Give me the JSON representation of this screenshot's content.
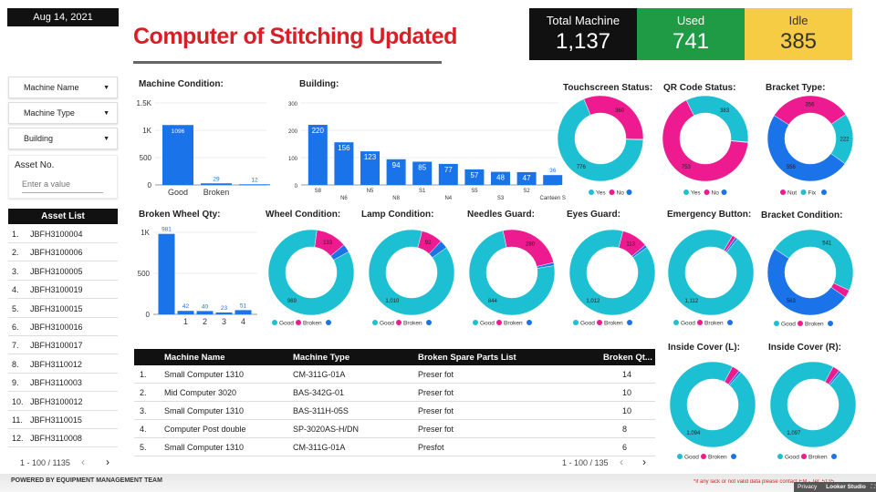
{
  "header": {
    "date": "Aug 14, 2021",
    "title": "Computer of Stitching Updated"
  },
  "kpis": {
    "total_label": "Total Machine",
    "total_value": "1,137",
    "used_label": "Used",
    "used_value": "741",
    "idle_label": "Idle",
    "idle_value": "385"
  },
  "filters": {
    "machine_name": "Machine Name",
    "machine_type": "Machine Type",
    "building": "Building",
    "asset_no_label": "Asset No.",
    "asset_no_placeholder": "Enter a value"
  },
  "asset_list": {
    "header": "Asset List",
    "rows": [
      {
        "n": "1.",
        "id": "JBFH3100004"
      },
      {
        "n": "2.",
        "id": "JBFH3100006"
      },
      {
        "n": "3.",
        "id": "JBFH3100005"
      },
      {
        "n": "4.",
        "id": "JBFH3100019"
      },
      {
        "n": "5.",
        "id": "JBFH3100015"
      },
      {
        "n": "6.",
        "id": "JBFH3100016"
      },
      {
        "n": "7.",
        "id": "JBFH3100017"
      },
      {
        "n": "8.",
        "id": "JBFH3110012"
      },
      {
        "n": "9.",
        "id": "JBFH3110003"
      },
      {
        "n": "10.",
        "id": "JBFH3100012"
      },
      {
        "n": "11.",
        "id": "JBFH3110015"
      },
      {
        "n": "12.",
        "id": "JBFH3110008"
      }
    ],
    "pager": "1 - 100 / 1135"
  },
  "colors": {
    "blue": "#1a73e8",
    "teal": "#1cc0d2",
    "pink": "#ee1a8f",
    "red": "#d81f26",
    "green": "#1e9b44",
    "yellow": "#f5cc43"
  },
  "chart_data": [
    {
      "id": "machine_condition",
      "type": "bar",
      "title": "Machine Condition:",
      "categories": [
        "Good",
        "Broken",
        ""
      ],
      "values": [
        1096,
        29,
        12
      ],
      "yticks": [
        "0",
        "500",
        "1K",
        "1.5K"
      ],
      "ylim": [
        0,
        1500
      ]
    },
    {
      "id": "building",
      "type": "bar",
      "title": "Building:",
      "categories": [
        "S8",
        "N6",
        "N5",
        "N8",
        "S1",
        "N4",
        "S5",
        "S3",
        "S2",
        "Canteen S"
      ],
      "values": [
        220,
        156,
        123,
        94,
        85,
        77,
        57,
        48,
        47,
        36
      ],
      "yticks": [
        "0",
        "100",
        "200",
        "300"
      ],
      "ylim": [
        0,
        300
      ]
    },
    {
      "id": "broken_wheel_qty",
      "type": "bar",
      "title": "Broken Wheel Qty:",
      "categories": [
        "",
        "1",
        "2",
        "3",
        "4"
      ],
      "values": [
        981,
        42,
        40,
        23,
        51
      ],
      "yticks": [
        "0",
        "500",
        "1K"
      ],
      "ylim": [
        0,
        1000
      ]
    },
    {
      "id": "touchscreen_status",
      "type": "pie",
      "title": "Touchscreen Status:",
      "slices": [
        {
          "name": "Yes",
          "value": 776,
          "color": "#1cc0d2"
        },
        {
          "name": "No",
          "value": 360,
          "color": "#ee1a8f"
        },
        {
          "name": "",
          "value": 1,
          "color": "#1a73e8"
        }
      ],
      "labels": [
        "776",
        "360"
      ]
    },
    {
      "id": "qr_code_status",
      "type": "pie",
      "title": "QR Code Status:",
      "slices": [
        {
          "name": "No",
          "value": 753,
          "color": "#ee1a8f"
        },
        {
          "name": "Yes",
          "value": 383,
          "color": "#1cc0d2"
        },
        {
          "name": "",
          "value": 1,
          "color": "#1a73e8"
        }
      ],
      "labels": [
        "753",
        "383"
      ]
    },
    {
      "id": "bracket_type",
      "type": "pie",
      "title": "Bracket Type:",
      "slices": [
        {
          "name": "",
          "value": 556,
          "color": "#1a73e8"
        },
        {
          "name": "Nut",
          "value": 356,
          "color": "#ee1a8f"
        },
        {
          "name": "Fix",
          "value": 222,
          "color": "#1cc0d2"
        }
      ],
      "labels": [
        "556",
        "356",
        "222"
      ]
    },
    {
      "id": "wheel_condition",
      "type": "pie",
      "title": "Wheel Condition:",
      "slices": [
        {
          "name": "Good",
          "value": 969,
          "color": "#1cc0d2"
        },
        {
          "name": "Broken",
          "value": 133,
          "color": "#ee1a8f"
        },
        {
          "name": "",
          "value": 35,
          "color": "#1a73e8"
        }
      ],
      "labels": [
        "969",
        "133"
      ]
    },
    {
      "id": "lamp_condition",
      "type": "pie",
      "title": "Lamp Condition:",
      "slices": [
        {
          "name": "Good",
          "value": 1010,
          "color": "#1cc0d2"
        },
        {
          "name": "Broken",
          "value": 92,
          "color": "#ee1a8f"
        },
        {
          "name": "",
          "value": 35,
          "color": "#1a73e8"
        }
      ],
      "labels": [
        "1,010",
        "92"
      ]
    },
    {
      "id": "needles_guard",
      "type": "pie",
      "title": "Needles Guard:",
      "slices": [
        {
          "name": "Good",
          "value": 844,
          "color": "#1cc0d2"
        },
        {
          "name": "Broken",
          "value": 280,
          "color": "#ee1a8f"
        },
        {
          "name": "",
          "value": 13,
          "color": "#1a73e8"
        }
      ],
      "labels": [
        "844",
        "280"
      ]
    },
    {
      "id": "eyes_guard",
      "type": "pie",
      "title": "Eyes Guard:",
      "slices": [
        {
          "name": "Good",
          "value": 1012,
          "color": "#1cc0d2"
        },
        {
          "name": "Broken",
          "value": 113,
          "color": "#ee1a8f"
        },
        {
          "name": "",
          "value": 12,
          "color": "#1a73e8"
        }
      ],
      "labels": [
        "1,012",
        "113"
      ]
    },
    {
      "id": "emergency_button",
      "type": "pie",
      "title": "Emergency Button:",
      "slices": [
        {
          "name": "Good",
          "value": 1112,
          "color": "#1cc0d2"
        },
        {
          "name": "Broken",
          "value": 15,
          "color": "#ee1a8f"
        },
        {
          "name": "",
          "value": 10,
          "color": "#1a73e8"
        }
      ],
      "labels": [
        "1,112"
      ]
    },
    {
      "id": "bracket_condition",
      "type": "pie",
      "title": "Bracket Condition:",
      "slices": [
        {
          "name": "",
          "value": 563,
          "color": "#1a73e8"
        },
        {
          "name": "Good",
          "value": 541,
          "color": "#1cc0d2"
        },
        {
          "name": "Broken",
          "value": 33,
          "color": "#ee1a8f"
        }
      ],
      "labels": [
        "563",
        "541"
      ]
    },
    {
      "id": "inside_cover_l",
      "type": "pie",
      "title": "Inside Cover (L):",
      "slices": [
        {
          "name": "Good",
          "value": 1094,
          "color": "#1cc0d2"
        },
        {
          "name": "Broken",
          "value": 33,
          "color": "#ee1a8f"
        },
        {
          "name": "",
          "value": 10,
          "color": "#1a73e8"
        }
      ],
      "labels": [
        "1,094"
      ]
    },
    {
      "id": "inside_cover_r",
      "type": "pie",
      "title": "Inside Cover (R):",
      "slices": [
        {
          "name": "Good",
          "value": 1097,
          "color": "#1cc0d2"
        },
        {
          "name": "Broken",
          "value": 30,
          "color": "#ee1a8f"
        },
        {
          "name": "",
          "value": 10,
          "color": "#1a73e8"
        }
      ],
      "labels": [
        "1,097"
      ]
    }
  ],
  "table": {
    "columns": [
      "Machine Name",
      "Machine Type",
      "Broken Spare Parts List",
      "Broken Qt..."
    ],
    "rows": [
      {
        "n": "1.",
        "name": "Small Computer 1310",
        "type": "CM-311G-01A",
        "part": "Preser fot",
        "qty": "14"
      },
      {
        "n": "2.",
        "name": "Mid Computer 3020",
        "type": "BAS-342G-01",
        "part": "Preser fot",
        "qty": "10"
      },
      {
        "n": "3.",
        "name": "Small Computer 1310",
        "type": "BAS-311H-05S",
        "part": "Preser fot",
        "qty": "10"
      },
      {
        "n": "4.",
        "name": "Computer Post double",
        "type": "SP-3020AS-H/DN",
        "part": "Preser fot",
        "qty": "8"
      },
      {
        "n": "5.",
        "name": "Small Computer 1310",
        "type": "CM-311G-01A",
        "part": "Presfot",
        "qty": "6"
      }
    ],
    "pager": "1 - 100 / 135"
  },
  "footer": {
    "left": "POWERED BY EQUIPMENT MANAGEMENT TEAM",
    "note": "*if any lack or not valid data please contact EM - Tel: 5135",
    "privacy": "Privacy",
    "brand": "Looker Studio"
  }
}
